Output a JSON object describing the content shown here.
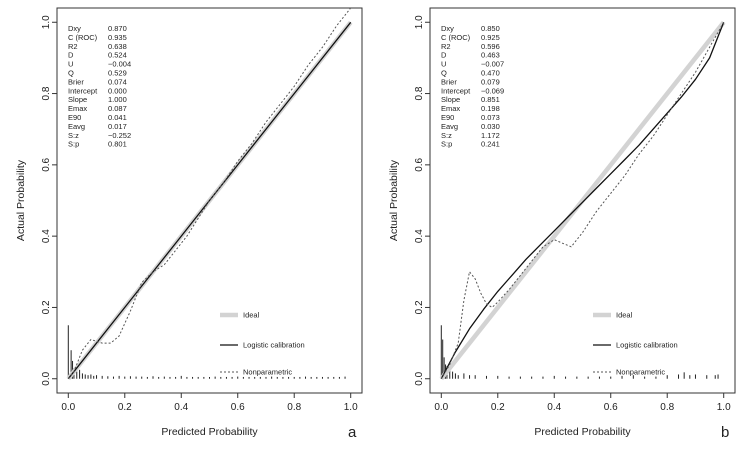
{
  "chart_data": [
    {
      "type": "line",
      "panel_label": "a",
      "xlabel": "Predicted Probability",
      "ylabel": "Actual Probability",
      "xlim": [
        0,
        1
      ],
      "ylim": [
        0,
        1
      ],
      "xticks": [
        "0.0",
        "0.2",
        "0.4",
        "0.6",
        "0.8",
        "1.0"
      ],
      "yticks": [
        "0.0",
        "0.2",
        "0.4",
        "0.6",
        "0.8",
        "1.0"
      ],
      "stats": [
        {
          "label": "Dxy",
          "value": "0.870"
        },
        {
          "label": "C (ROC)",
          "value": "0.935"
        },
        {
          "label": "R2",
          "value": "0.638"
        },
        {
          "label": "D",
          "value": "0.524"
        },
        {
          "label": "U",
          "value": "−0.004"
        },
        {
          "label": "Q",
          "value": "0.529"
        },
        {
          "label": "Brier",
          "value": "0.074"
        },
        {
          "label": "Intercept",
          "value": "0.000"
        },
        {
          "label": "Slope",
          "value": "1.000"
        },
        {
          "label": "Emax",
          "value": "0.087"
        },
        {
          "label": "E90",
          "value": "0.041"
        },
        {
          "label": "Eavg",
          "value": "0.017"
        },
        {
          "label": "S:z",
          "value": "−0.252"
        },
        {
          "label": "S:p",
          "value": "0.801"
        }
      ],
      "legend": [
        {
          "key": "ideal",
          "label": "Ideal",
          "color": "#d3d3d3"
        },
        {
          "key": "logistic",
          "label": "Logistic calibration",
          "color": "#111111"
        },
        {
          "key": "nonparam",
          "label": "Nonparametric",
          "color": "#555555"
        }
      ],
      "legend_position": "bottom-right",
      "series": [
        {
          "key": "ideal",
          "x": [
            0,
            1
          ],
          "y": [
            0,
            1
          ]
        },
        {
          "key": "logistic",
          "x": [
            0,
            0.2,
            0.4,
            0.6,
            0.8,
            1.0
          ],
          "y": [
            0,
            0.2,
            0.4,
            0.6,
            0.8,
            1.0
          ]
        },
        {
          "key": "nonparam",
          "x": [
            0.0,
            0.02,
            0.05,
            0.08,
            0.12,
            0.15,
            0.18,
            0.22,
            0.26,
            0.3,
            0.34,
            0.38,
            0.42,
            0.46,
            0.5,
            0.55,
            0.6,
            0.65,
            0.7,
            0.75,
            0.8,
            0.85,
            0.9,
            0.95,
            1.0
          ],
          "y": [
            0.0,
            0.02,
            0.08,
            0.11,
            0.1,
            0.1,
            0.12,
            0.19,
            0.27,
            0.3,
            0.32,
            0.36,
            0.4,
            0.45,
            0.5,
            0.55,
            0.61,
            0.66,
            0.72,
            0.77,
            0.82,
            0.88,
            0.93,
            0.99,
            1.04
          ]
        }
      ],
      "rug": {
        "x": [
          0.0,
          0.01,
          0.015,
          0.02,
          0.03,
          0.04,
          0.05,
          0.06,
          0.07,
          0.08,
          0.09,
          0.1,
          0.12,
          0.14,
          0.16,
          0.18,
          0.2,
          0.22,
          0.24,
          0.26,
          0.28,
          0.3,
          0.32,
          0.34,
          0.36,
          0.38,
          0.4,
          0.42,
          0.44,
          0.46,
          0.48,
          0.5,
          0.52,
          0.54,
          0.56,
          0.58,
          0.6,
          0.62,
          0.64,
          0.66,
          0.68,
          0.7,
          0.72,
          0.74,
          0.76,
          0.78,
          0.8,
          0.82,
          0.84,
          0.86,
          0.88,
          0.9,
          0.92,
          0.94,
          0.96,
          0.98
        ],
        "h": [
          0.15,
          0.08,
          0.05,
          0.03,
          0.02,
          0.025,
          0.015,
          0.012,
          0.01,
          0.012,
          0.008,
          0.01,
          0.008,
          0.007,
          0.006,
          0.008,
          0.006,
          0.007,
          0.006,
          0.006,
          0.005,
          0.007,
          0.005,
          0.006,
          0.005,
          0.005,
          0.008,
          0.005,
          0.005,
          0.005,
          0.005,
          0.005,
          0.006,
          0.005,
          0.005,
          0.005,
          0.006,
          0.005,
          0.005,
          0.005,
          0.005,
          0.005,
          0.006,
          0.005,
          0.005,
          0.005,
          0.005,
          0.005,
          0.006,
          0.005,
          0.005,
          0.005,
          0.005,
          0.005,
          0.005,
          0.006
        ]
      }
    },
    {
      "type": "line",
      "panel_label": "b",
      "xlabel": "Predicted Probability",
      "ylabel": "Actual Probability",
      "xlim": [
        0,
        1
      ],
      "ylim": [
        0,
        1
      ],
      "xticks": [
        "0.0",
        "0.2",
        "0.4",
        "0.6",
        "0.8",
        "1.0"
      ],
      "yticks": [
        "0.0",
        "0.2",
        "0.4",
        "0.6",
        "0.8",
        "1.0"
      ],
      "stats": [
        {
          "label": "Dxy",
          "value": "0.850"
        },
        {
          "label": "C (ROC)",
          "value": "0.925"
        },
        {
          "label": "R2",
          "value": "0.596"
        },
        {
          "label": "D",
          "value": "0.463"
        },
        {
          "label": "U",
          "value": "−0.007"
        },
        {
          "label": "Q",
          "value": "0.470"
        },
        {
          "label": "Brier",
          "value": "0.079"
        },
        {
          "label": "Intercept",
          "value": "−0.069"
        },
        {
          "label": "Slope",
          "value": "0.851"
        },
        {
          "label": "Emax",
          "value": "0.198"
        },
        {
          "label": "E90",
          "value": "0.073"
        },
        {
          "label": "Eavg",
          "value": "0.030"
        },
        {
          "label": "S:z",
          "value": "1.172"
        },
        {
          "label": "S:p",
          "value": "0.241"
        }
      ],
      "legend": [
        {
          "key": "ideal",
          "label": "Ideal",
          "color": "#d3d3d3"
        },
        {
          "key": "logistic",
          "label": "Logistic calibration",
          "color": "#111111"
        },
        {
          "key": "nonparam",
          "label": "Nonparametric",
          "color": "#555555"
        }
      ],
      "legend_position": "bottom-right",
      "series": [
        {
          "key": "ideal",
          "x": [
            0,
            1
          ],
          "y": [
            0,
            1
          ]
        },
        {
          "key": "logistic",
          "x": [
            0.0,
            0.02,
            0.05,
            0.1,
            0.15,
            0.2,
            0.25,
            0.3,
            0.35,
            0.4,
            0.45,
            0.5,
            0.55,
            0.6,
            0.65,
            0.7,
            0.75,
            0.8,
            0.85,
            0.9,
            0.95,
            1.0
          ],
          "y": [
            0.0,
            0.03,
            0.075,
            0.14,
            0.195,
            0.245,
            0.29,
            0.335,
            0.375,
            0.415,
            0.455,
            0.495,
            0.535,
            0.575,
            0.615,
            0.655,
            0.7,
            0.745,
            0.79,
            0.84,
            0.9,
            1.0
          ]
        },
        {
          "key": "nonparam",
          "x": [
            0.0,
            0.03,
            0.06,
            0.08,
            0.1,
            0.12,
            0.14,
            0.16,
            0.18,
            0.2,
            0.24,
            0.28,
            0.32,
            0.36,
            0.4,
            0.43,
            0.46,
            0.5,
            0.55,
            0.6,
            0.65,
            0.7,
            0.75,
            0.8,
            0.85,
            0.9,
            0.95,
            1.0
          ],
          "y": [
            0.0,
            0.04,
            0.1,
            0.22,
            0.3,
            0.28,
            0.24,
            0.21,
            0.2,
            0.215,
            0.25,
            0.29,
            0.33,
            0.37,
            0.39,
            0.38,
            0.37,
            0.41,
            0.47,
            0.52,
            0.57,
            0.63,
            0.68,
            0.74,
            0.8,
            0.86,
            0.93,
            1.0
          ]
        }
      ],
      "rug": {
        "x": [
          0.0,
          0.005,
          0.01,
          0.015,
          0.02,
          0.03,
          0.04,
          0.05,
          0.06,
          0.08,
          0.1,
          0.12,
          0.16,
          0.2,
          0.24,
          0.28,
          0.32,
          0.36,
          0.4,
          0.44,
          0.48,
          0.52,
          0.56,
          0.6,
          0.64,
          0.68,
          0.72,
          0.76,
          0.8,
          0.84,
          0.86,
          0.88,
          0.9,
          0.94,
          0.97,
          0.98
        ],
        "h": [
          0.15,
          0.11,
          0.06,
          0.04,
          0.035,
          0.03,
          0.02,
          0.015,
          0.01,
          0.015,
          0.01,
          0.01,
          0.008,
          0.008,
          0.006,
          0.006,
          0.006,
          0.006,
          0.008,
          0.006,
          0.006,
          0.006,
          0.006,
          0.006,
          0.008,
          0.01,
          0.006,
          0.006,
          0.01,
          0.012,
          0.018,
          0.01,
          0.012,
          0.01,
          0.01,
          0.012
        ]
      }
    }
  ]
}
